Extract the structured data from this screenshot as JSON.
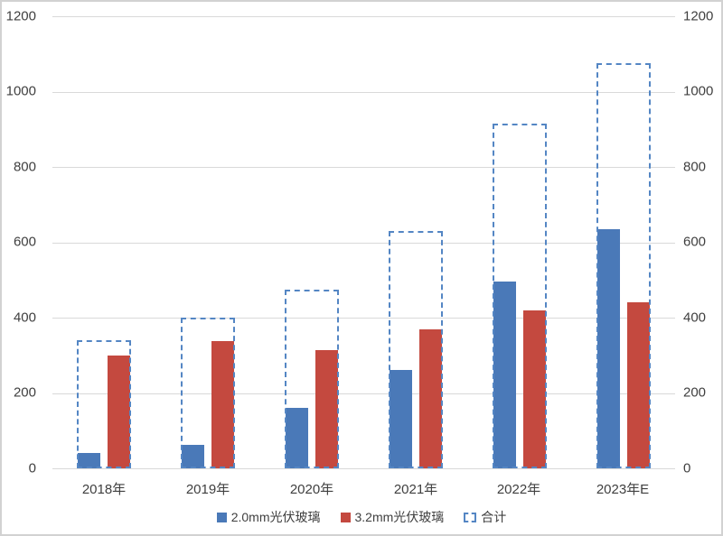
{
  "chart_data": {
    "type": "bar",
    "categories": [
      "2018年",
      "2019年",
      "2020年",
      "2021年",
      "2022年",
      "2023年E"
    ],
    "series": [
      {
        "name": "2.0mm光伏玻璃",
        "style": "solid-bar",
        "color": "#4a79b8",
        "values": [
          40,
          63,
          160,
          260,
          495,
          635
        ]
      },
      {
        "name": "3.2mm光伏玻璃",
        "style": "solid-bar",
        "color": "#c4493f",
        "values": [
          300,
          337,
          315,
          370,
          420,
          440
        ]
      },
      {
        "name": "合计",
        "style": "dashed-outline",
        "color": "#5486c4",
        "values": [
          340,
          400,
          475,
          630,
          915,
          1075
        ]
      }
    ],
    "ylim": [
      0,
      1200
    ],
    "ytick_interval": 200,
    "yticks_left": [
      "1200",
      "1000",
      "800",
      "600",
      "400",
      "200",
      "0"
    ],
    "yticks_right": [
      "1200",
      "1000",
      "800",
      "600",
      "400",
      "200",
      "0"
    ],
    "grid": true,
    "gridline_color": "#d9d9d9",
    "legend_position": "bottom",
    "title": ""
  },
  "colors": {
    "background": "#ffffff",
    "frame_border": "#d2d2d2",
    "axis_text": "#3f3f3f"
  }
}
